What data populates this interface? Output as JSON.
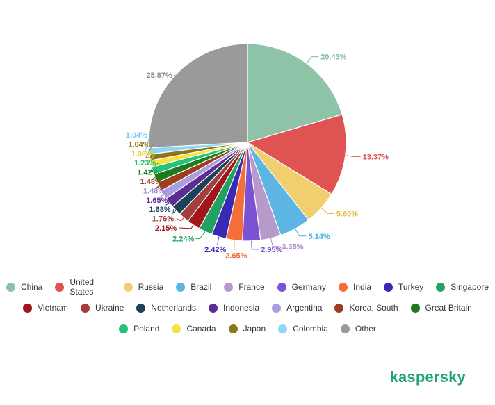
{
  "chart_data": {
    "type": "pie",
    "title": "",
    "slices": [
      {
        "label": "China",
        "value": 20.43,
        "value_label": "20.43%",
        "color": "#8ec3a7",
        "label_color": "#7dbf9b"
      },
      {
        "label": "United States",
        "value": 13.37,
        "value_label": "13.37%",
        "color": "#df5353",
        "label_color": "#df5353"
      },
      {
        "label": "Russia",
        "value": 5.6,
        "value_label": "5.60%",
        "color": "#f1cf6f",
        "label_color": "#e6b93d"
      },
      {
        "label": "Brazil",
        "value": 5.14,
        "value_label": "5.14%",
        "color": "#5db5e3",
        "label_color": "#4aaee0"
      },
      {
        "label": "France",
        "value": 3.35,
        "value_label": "3.35%",
        "color": "#b799cb",
        "label_color": "#a98cc4"
      },
      {
        "label": "Germany",
        "value": 2.95,
        "value_label": "2.95%",
        "color": "#7b52d4",
        "label_color": "#7b52d4"
      },
      {
        "label": "India",
        "value": 2.65,
        "value_label": "2.65%",
        "color": "#f56e3a",
        "label_color": "#f56e3a"
      },
      {
        "label": "Turkey",
        "value": 2.42,
        "value_label": "2.42%",
        "color": "#3a29b5",
        "label_color": "#3a29b5"
      },
      {
        "label": "Singapore",
        "value": 2.24,
        "value_label": "2.24%",
        "color": "#23a163",
        "label_color": "#23a163"
      },
      {
        "label": "Vietnam",
        "value": 2.15,
        "value_label": "2.15%",
        "color": "#a0161b",
        "label_color": "#a0161b"
      },
      {
        "label": "Ukraine",
        "value": 1.76,
        "value_label": "1.76%",
        "color": "#a33e3e",
        "label_color": "#a33e3e"
      },
      {
        "label": "Netherlands",
        "value": 1.68,
        "value_label": "1.68%",
        "color": "#1c4257",
        "label_color": "#1c4257"
      },
      {
        "label": "Indonesia",
        "value": 1.65,
        "value_label": "1.65%",
        "color": "#5e2c95",
        "label_color": "#5e2c95"
      },
      {
        "label": "Argentina",
        "value": 1.48,
        "value_label": "1.48%",
        "color": "#ab9de1",
        "label_color": "#9e8fdb"
      },
      {
        "label": "Korea, South",
        "value": 1.48,
        "value_label": "1.48%",
        "color": "#9b3f1f",
        "label_color": "#9b3f1f"
      },
      {
        "label": "Great Britain",
        "value": 1.42,
        "value_label": "1.42%",
        "color": "#1d7a1d",
        "label_color": "#1d7a1d"
      },
      {
        "label": "Poland",
        "value": 1.23,
        "value_label": "1.23%",
        "color": "#24c27a",
        "label_color": "#24c27a"
      },
      {
        "label": "Canada",
        "value": 1.06,
        "value_label": "1.06%",
        "color": "#f5e23d",
        "label_color": "#e8cf21"
      },
      {
        "label": "Japan",
        "value": 1.04,
        "value_label": "1.04%",
        "color": "#8f7517",
        "label_color": "#8f7517"
      },
      {
        "label": "Colombia",
        "value": 1.04,
        "value_label": "1.04%",
        "color": "#8fd5f5",
        "label_color": "#72c9f2"
      },
      {
        "label": "Other",
        "value": 25.87,
        "value_label": "25.87%",
        "color": "#9a9a9a",
        "label_color": "#8a8a8a"
      }
    ],
    "legend": {
      "placement": "bottom",
      "rows": [
        9,
        7,
        5
      ]
    }
  },
  "brand": {
    "name": "kaspersky",
    "color": "#1fa37a"
  }
}
